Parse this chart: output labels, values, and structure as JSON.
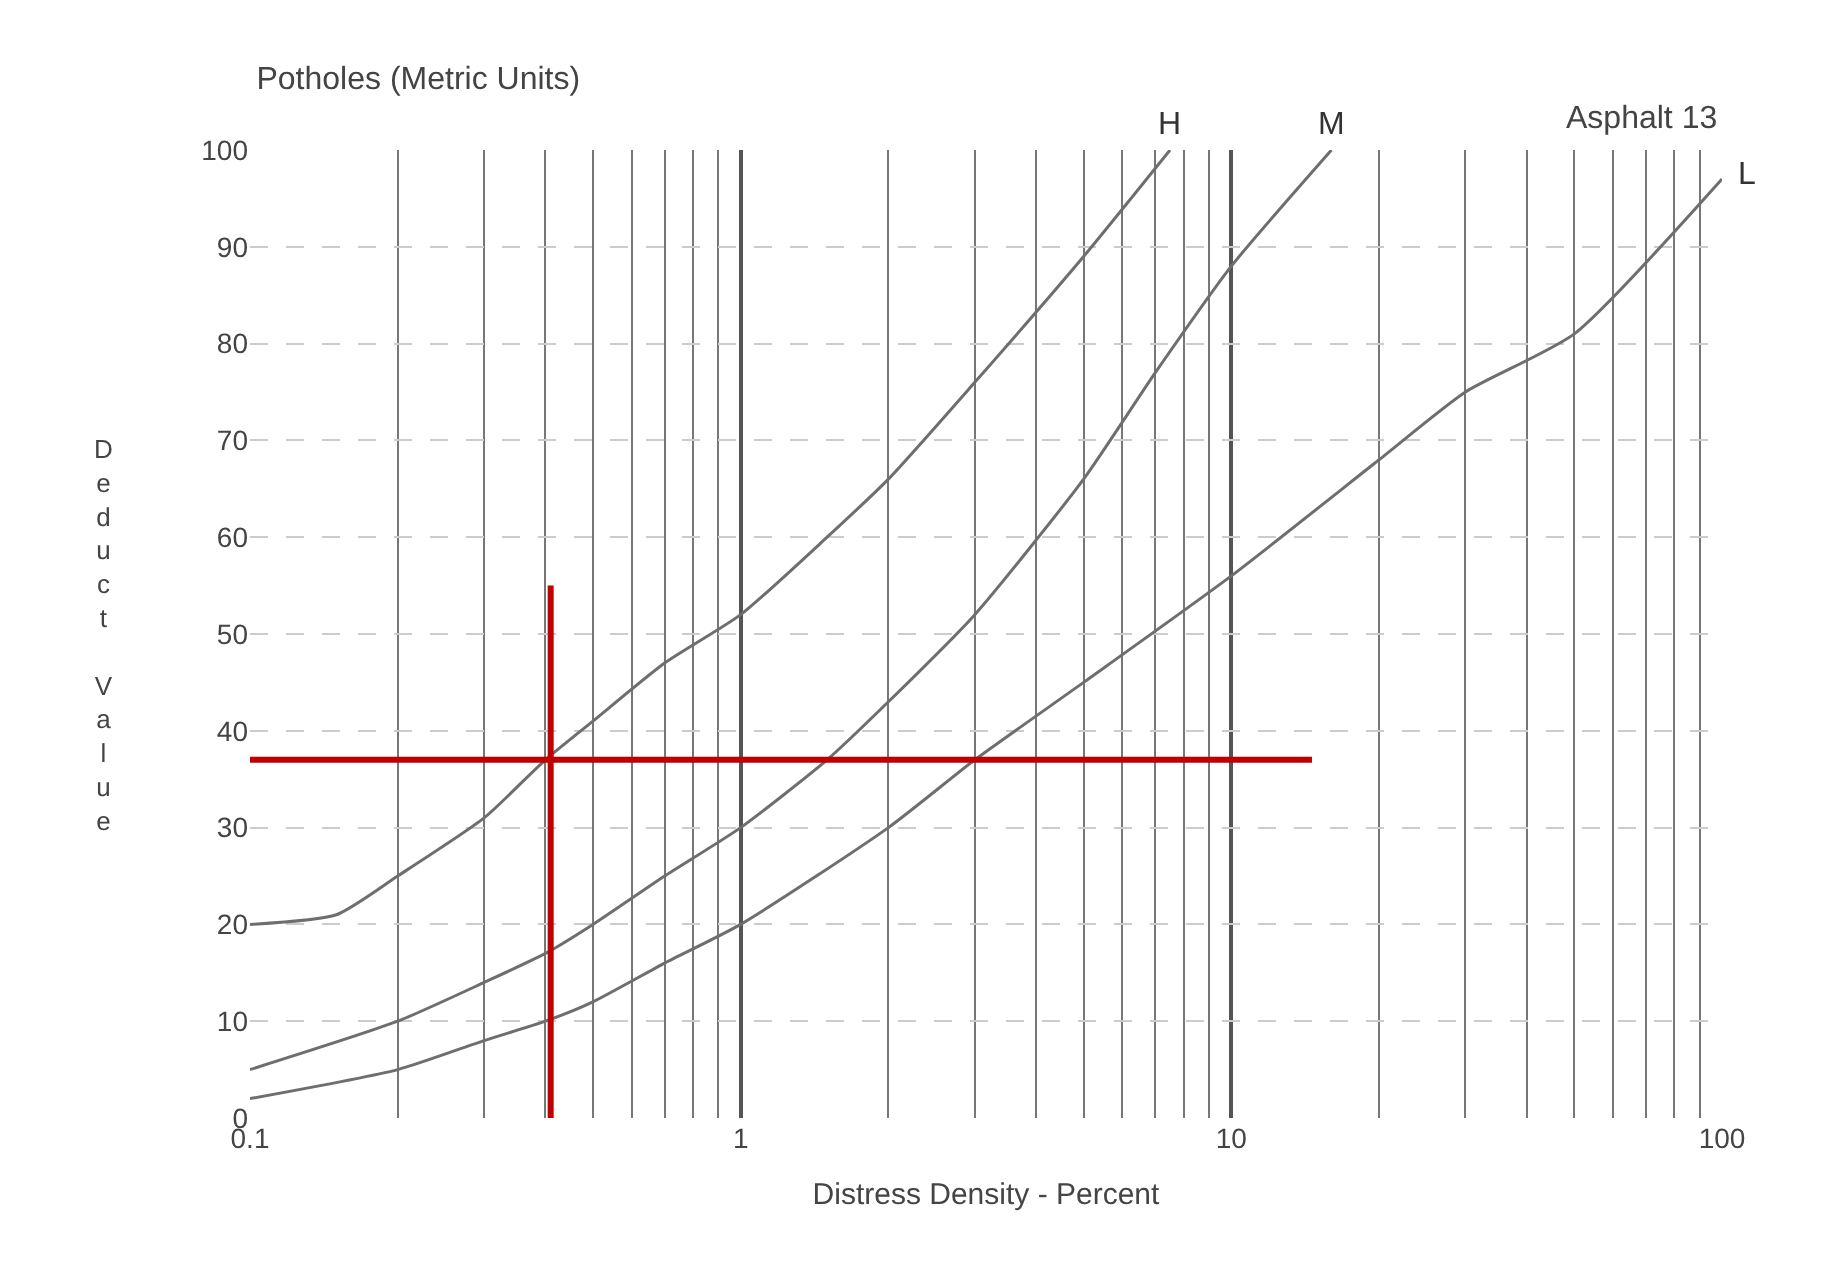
{
  "chart_data": {
    "type": "line",
    "title": "Potholes (Metric Units)",
    "subtitle": "Asphalt 13",
    "xlabel": "Distress Density - Percent",
    "ylabel": "Deduct Value",
    "log": "x",
    "xlim": [
      0.1,
      100
    ],
    "xticks": [
      0.1,
      1,
      10,
      100
    ],
    "ylim": [
      0,
      100
    ],
    "yticks": [
      0,
      10,
      20,
      30,
      40,
      50,
      60,
      70,
      80,
      90,
      100
    ],
    "grid": true,
    "legend": false,
    "marker": "none",
    "line_style": "solid",
    "series": [
      {
        "name": "H",
        "color": "#6e6e6e",
        "x": [
          0.1,
          0.15,
          0.2,
          0.3,
          0.4,
          0.5,
          0.7,
          1,
          1.5,
          2,
          3,
          5,
          7.5
        ],
        "values": [
          20,
          21,
          25,
          31,
          37,
          41,
          47,
          52,
          60,
          66,
          76,
          89,
          100
        ]
      },
      {
        "name": "M",
        "color": "#6e6e6e",
        "x": [
          0.1,
          0.2,
          0.3,
          0.4,
          0.5,
          0.7,
          1,
          1.5,
          2,
          3,
          5,
          7,
          10,
          16
        ],
        "values": [
          5,
          10,
          14,
          17,
          20,
          25,
          30,
          37,
          43,
          52,
          66,
          77,
          88,
          100
        ]
      },
      {
        "name": "L",
        "color": "#6e6e6e",
        "x": [
          0.1,
          0.2,
          0.3,
          0.4,
          0.5,
          0.7,
          1,
          2,
          3,
          5,
          10,
          20,
          30,
          50,
          100
        ],
        "values": [
          2,
          5,
          8,
          10,
          12,
          16,
          20,
          30,
          37,
          45,
          56,
          68,
          75,
          81,
          97
        ]
      },
      {
        "color": "#c00000",
        "x": [
          0.1,
          14.6
        ],
        "values": [
          37,
          37
        ]
      },
      {
        "color": "#c00000",
        "x": [
          0.41,
          0.41
        ],
        "values": [
          0,
          55
        ]
      }
    ]
  }
}
